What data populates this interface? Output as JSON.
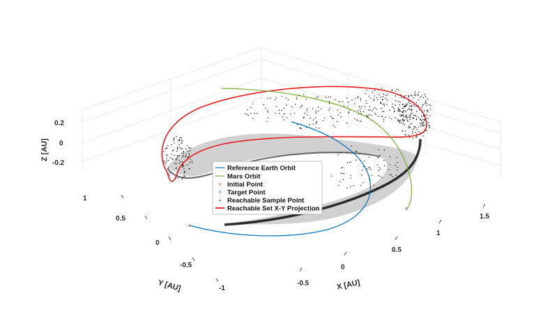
{
  "chart_data": {
    "type": "scatter",
    "subtype": "3d-trajectory",
    "title": "",
    "xlabel": "X [AU]",
    "ylabel": "Y [AU]",
    "zlabel": "Z [AU]",
    "xlim": [
      -0.8,
      1.7
    ],
    "ylim": [
      -1.1,
      1.3
    ],
    "zlim": [
      -0.3,
      0.3
    ],
    "x_ticks": [
      "-0.5",
      "0",
      "0.5",
      "1",
      "1.5"
    ],
    "y_ticks": [
      "-1",
      "-0.5",
      "0",
      "0.5",
      "1"
    ],
    "z_ticks": [
      "-0.2",
      "0",
      "0.2"
    ],
    "grid": true,
    "legend_position": "inside-center",
    "series": [
      {
        "name": "Reference Earth Orbit",
        "style": "line",
        "color": "#0072BD",
        "x": [
          0.85,
          1.05,
          1.02,
          0.75,
          0.3,
          -0.2,
          -0.55
        ],
        "y": [
          0.55,
          0.1,
          -0.35,
          -0.75,
          -0.98,
          -0.98,
          -0.82
        ],
        "z": [
          0,
          0,
          0,
          0,
          0,
          0,
          0
        ]
      },
      {
        "name": "Mars Orbit",
        "style": "line",
        "color": "#77AC30",
        "x": [
          0.6,
          1.05,
          1.42,
          1.6,
          1.55,
          1.35
        ],
        "y": [
          1.25,
          1.05,
          0.6,
          0.05,
          -0.45,
          -0.85
        ],
        "z": [
          0.05,
          0.04,
          0.02,
          0.0,
          -0.02,
          -0.04
        ]
      },
      {
        "name": "Initial Point",
        "style": "marker",
        "color": "#D95319",
        "x": [
          -0.55
        ],
        "y": [
          -0.82
        ],
        "z": [
          0
        ]
      },
      {
        "name": "Target Point",
        "style": "marker",
        "color": "#888888",
        "x": [
          1.35
        ],
        "y": [
          -0.85
        ],
        "z": [
          -0.04
        ]
      },
      {
        "name": "Reachable Sample Point",
        "style": "marker",
        "color": "#000000",
        "x": [],
        "y": [],
        "z": []
      },
      {
        "name": "Reachable Set X-Y Projection",
        "style": "line",
        "color": "#E41A1C",
        "x": [],
        "y": [],
        "z": []
      }
    ]
  },
  "legend": {
    "items": [
      {
        "label": "Reference Earth Orbit",
        "color": "#0072BD",
        "marker": "line"
      },
      {
        "label": "Mars Orbit",
        "color": "#77AC30",
        "marker": "line"
      },
      {
        "label": "Initial Point",
        "color": "#D95319",
        "marker": "x"
      },
      {
        "label": "Target Point",
        "color": "#888888",
        "marker": "o"
      },
      {
        "label": "Reachable Sample Point",
        "color": "#000000",
        "marker": "dot"
      },
      {
        "label": "Reachable Set X-Y Projection",
        "color": "#E41A1C",
        "marker": "thick-line"
      }
    ]
  }
}
